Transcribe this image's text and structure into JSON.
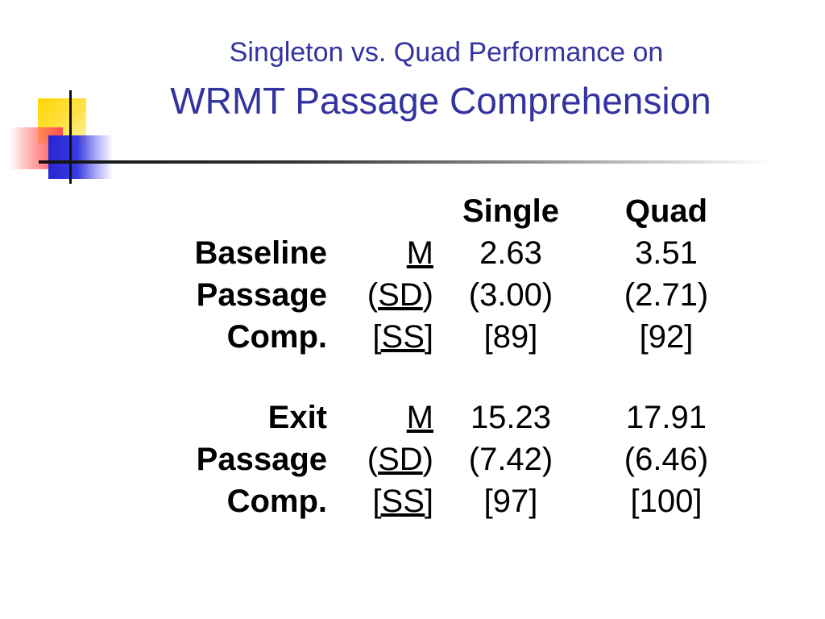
{
  "slide": {
    "title_line1": "Singleton vs. Quad Performance on",
    "title_line2": "WRMT Passage Comprehension"
  },
  "table": {
    "columns": [
      "Single",
      "Quad"
    ],
    "blocks": [
      {
        "labels": [
          "Baseline",
          "Passage",
          "Comp."
        ],
        "stats": {
          "mean": {
            "open": "",
            "text": "M",
            "close": ""
          },
          "sd": {
            "open": "(",
            "text": "SD",
            "close": ")"
          },
          "ss": {
            "open": "[",
            "text": "SS",
            "close": "]"
          }
        },
        "single": [
          "2.63",
          "(3.00)",
          "[89]"
        ],
        "quad": [
          "3.51",
          "(2.71)",
          "[92]"
        ]
      },
      {
        "labels": [
          "Exit",
          "Passage",
          "Comp."
        ],
        "stats": {
          "mean": {
            "open": "",
            "text": "M",
            "close": ""
          },
          "sd": {
            "open": "(",
            "text": "SD",
            "close": ")"
          },
          "ss": {
            "open": "[",
            "text": "SS",
            "close": "]"
          }
        },
        "single": [
          "15.23",
          "(7.42)",
          "[97]"
        ],
        "quad": [
          "17.91",
          "(6.46)",
          "[100]"
        ]
      }
    ]
  },
  "colors": {
    "title": "#3333a0",
    "deco_yellow": "#ffd400",
    "deco_red": "#ff4a4a",
    "deco_blue": "#2626d4"
  }
}
